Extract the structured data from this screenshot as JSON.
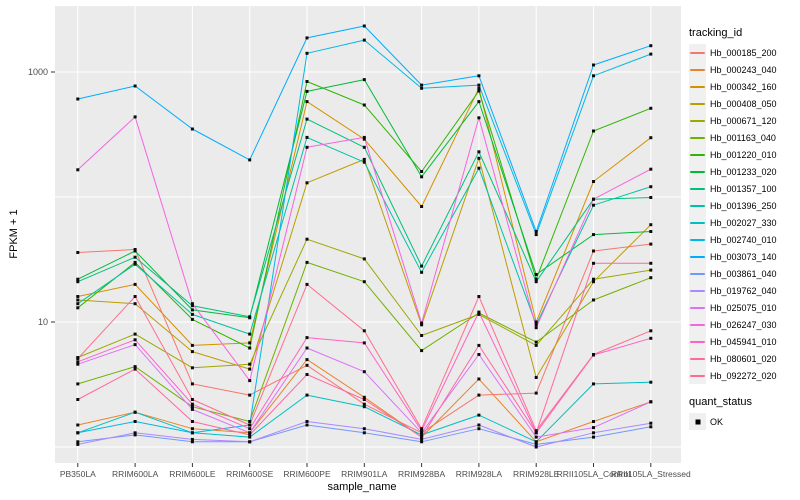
{
  "legend": {
    "tracking_title": "tracking_id",
    "quant_title": "quant_status",
    "quant_label": "OK"
  },
  "chart_data": {
    "type": "line",
    "title": "",
    "xlabel": "sample_name",
    "ylabel": "FPKM + 1",
    "y_scale": "log10",
    "ylim": [
      0.75,
      3370
    ],
    "grid": true,
    "legend_position": "right",
    "panel_bg": "#EBEBEB",
    "grid_color": "#FFFFFF",
    "tick_color": "#333333",
    "tick_label_color": "#4D4D4D",
    "point_shape": "square",
    "point_color": "#0b0b0b",
    "y_ticks": [
      {
        "value": 10,
        "label": "10"
      },
      {
        "value": 1000,
        "label": "1000"
      }
    ],
    "y_gridlines": [
      1,
      10,
      100,
      1000
    ],
    "categories": [
      "PB350LA",
      "RRIM600LA",
      "RRIM600LE",
      "RRIM600SE",
      "RRIM600PE",
      "RRIM901LA",
      "RRIM928BA",
      "RRIM928LA",
      "RRIM928LE",
      "RRII105LA_Control",
      "RRII105LA_Stressed"
    ],
    "series": [
      {
        "name": "Hb_000185_200",
        "color": "#F8766D",
        "values": [
          36,
          38,
          3.2,
          2.6,
          4.5,
          2.2,
          1.3,
          2.6,
          2.7,
          37,
          42
        ]
      },
      {
        "name": "Hb_000243_040",
        "color": "#E9842C",
        "values": [
          1.5,
          1.9,
          1.4,
          1.3,
          5.0,
          2.5,
          1.2,
          3.5,
          1.1,
          1.6,
          2.3
        ]
      },
      {
        "name": "Hb_000342_160",
        "color": "#D69100",
        "values": [
          16,
          20,
          6.5,
          6.8,
          580,
          290,
          84,
          740,
          10,
          133,
          298
        ]
      },
      {
        "name": "Hb_000408_050",
        "color": "#BC9D00",
        "values": [
          15,
          14,
          5.8,
          4.2,
          130,
          200,
          9.5,
          204,
          3.6,
          21,
          60
        ]
      },
      {
        "name": "Hb_000671_120",
        "color": "#9CA700",
        "values": [
          5.2,
          8.0,
          4.3,
          4.6,
          46,
          32,
          7.8,
          11.5,
          6.5,
          22,
          26
        ]
      },
      {
        "name": "Hb_001163_040",
        "color": "#6FB000",
        "values": [
          3.2,
          4.4,
          2.1,
          1.6,
          30,
          21,
          5.9,
          11.8,
          6.9,
          15,
          22.6
        ]
      },
      {
        "name": "Hb_001220_010",
        "color": "#2FB600",
        "values": [
          13,
          30,
          10.5,
          6.2,
          840,
          545,
          160,
          705,
          22,
          337,
          512
        ]
      },
      {
        "name": "Hb_001233_020",
        "color": "#00BA38",
        "values": [
          22,
          37,
          12.5,
          10.8,
          700,
          870,
          145,
          580,
          24,
          50,
          53
        ]
      },
      {
        "name": "Hb_001357_100",
        "color": "#00BF7D",
        "values": [
          21,
          33,
          13.5,
          11,
          420,
          250,
          28,
          230,
          21,
          96,
          99
        ]
      },
      {
        "name": "Hb_001396_250",
        "color": "#00C1A7",
        "values": [
          14,
          29,
          11.5,
          8.0,
          300,
          190,
          25,
          170,
          9.5,
          86,
          121
        ]
      },
      {
        "name": "Hb_002027_330",
        "color": "#00BFC4",
        "values": [
          1.3,
          1.9,
          1.3,
          1.2,
          2.6,
          2.1,
          1.25,
          1.8,
          1.1,
          3.2,
          3.3
        ]
      },
      {
        "name": "Hb_002740_010",
        "color": "#00B8E5",
        "values": [
          1.3,
          1.6,
          1.3,
          1.5,
          1410,
          1800,
          740,
          786,
          50,
          933,
          1390
        ]
      },
      {
        "name": "Hb_003073_140",
        "color": "#00ACFC",
        "values": [
          608,
          772,
          350,
          198,
          1875,
          2333,
          786,
          933,
          53,
          1138,
          1624
        ]
      },
      {
        "name": "Hb_003861_040",
        "color": "#7099FF",
        "values": [
          1.1,
          1.25,
          1.1,
          1.1,
          1.5,
          1.3,
          1.1,
          1.4,
          1.05,
          1.2,
          1.45
        ]
      },
      {
        "name": "Hb_019762_040",
        "color": "#AC88FF",
        "values": [
          1.05,
          1.3,
          1.15,
          1.1,
          1.6,
          1.4,
          1.15,
          1.5,
          1.0,
          1.3,
          1.55
        ]
      },
      {
        "name": "Hb_025075_010",
        "color": "#DC71FA",
        "values": [
          4.6,
          6.6,
          2.0,
          1.3,
          6.2,
          4.0,
          1.3,
          5.5,
          1.2,
          1.43,
          2.3
        ]
      },
      {
        "name": "Hb_026247_030",
        "color": "#F763E0",
        "values": [
          165,
          437,
          14,
          3.4,
          250,
          300,
          9.8,
          430,
          9.0,
          96,
          167
        ]
      },
      {
        "name": "Hb_045941_010",
        "color": "#FF61C7",
        "values": [
          4.8,
          7.2,
          2.2,
          1.4,
          7.5,
          6.8,
          1.35,
          12,
          1.3,
          5.45,
          7.4
        ]
      },
      {
        "name": "Hb_080601_020",
        "color": "#FF68A1",
        "values": [
          2.4,
          4.2,
          1.6,
          1.25,
          3.8,
          2.4,
          1.2,
          6.5,
          1.3,
          29.5,
          29.5
        ]
      },
      {
        "name": "Hb_092272_020",
        "color": "#FF6E8E",
        "values": [
          5.1,
          16,
          2.4,
          1.5,
          20,
          8.5,
          1.4,
          16,
          1.35,
          5.5,
          8.5
        ]
      }
    ]
  }
}
